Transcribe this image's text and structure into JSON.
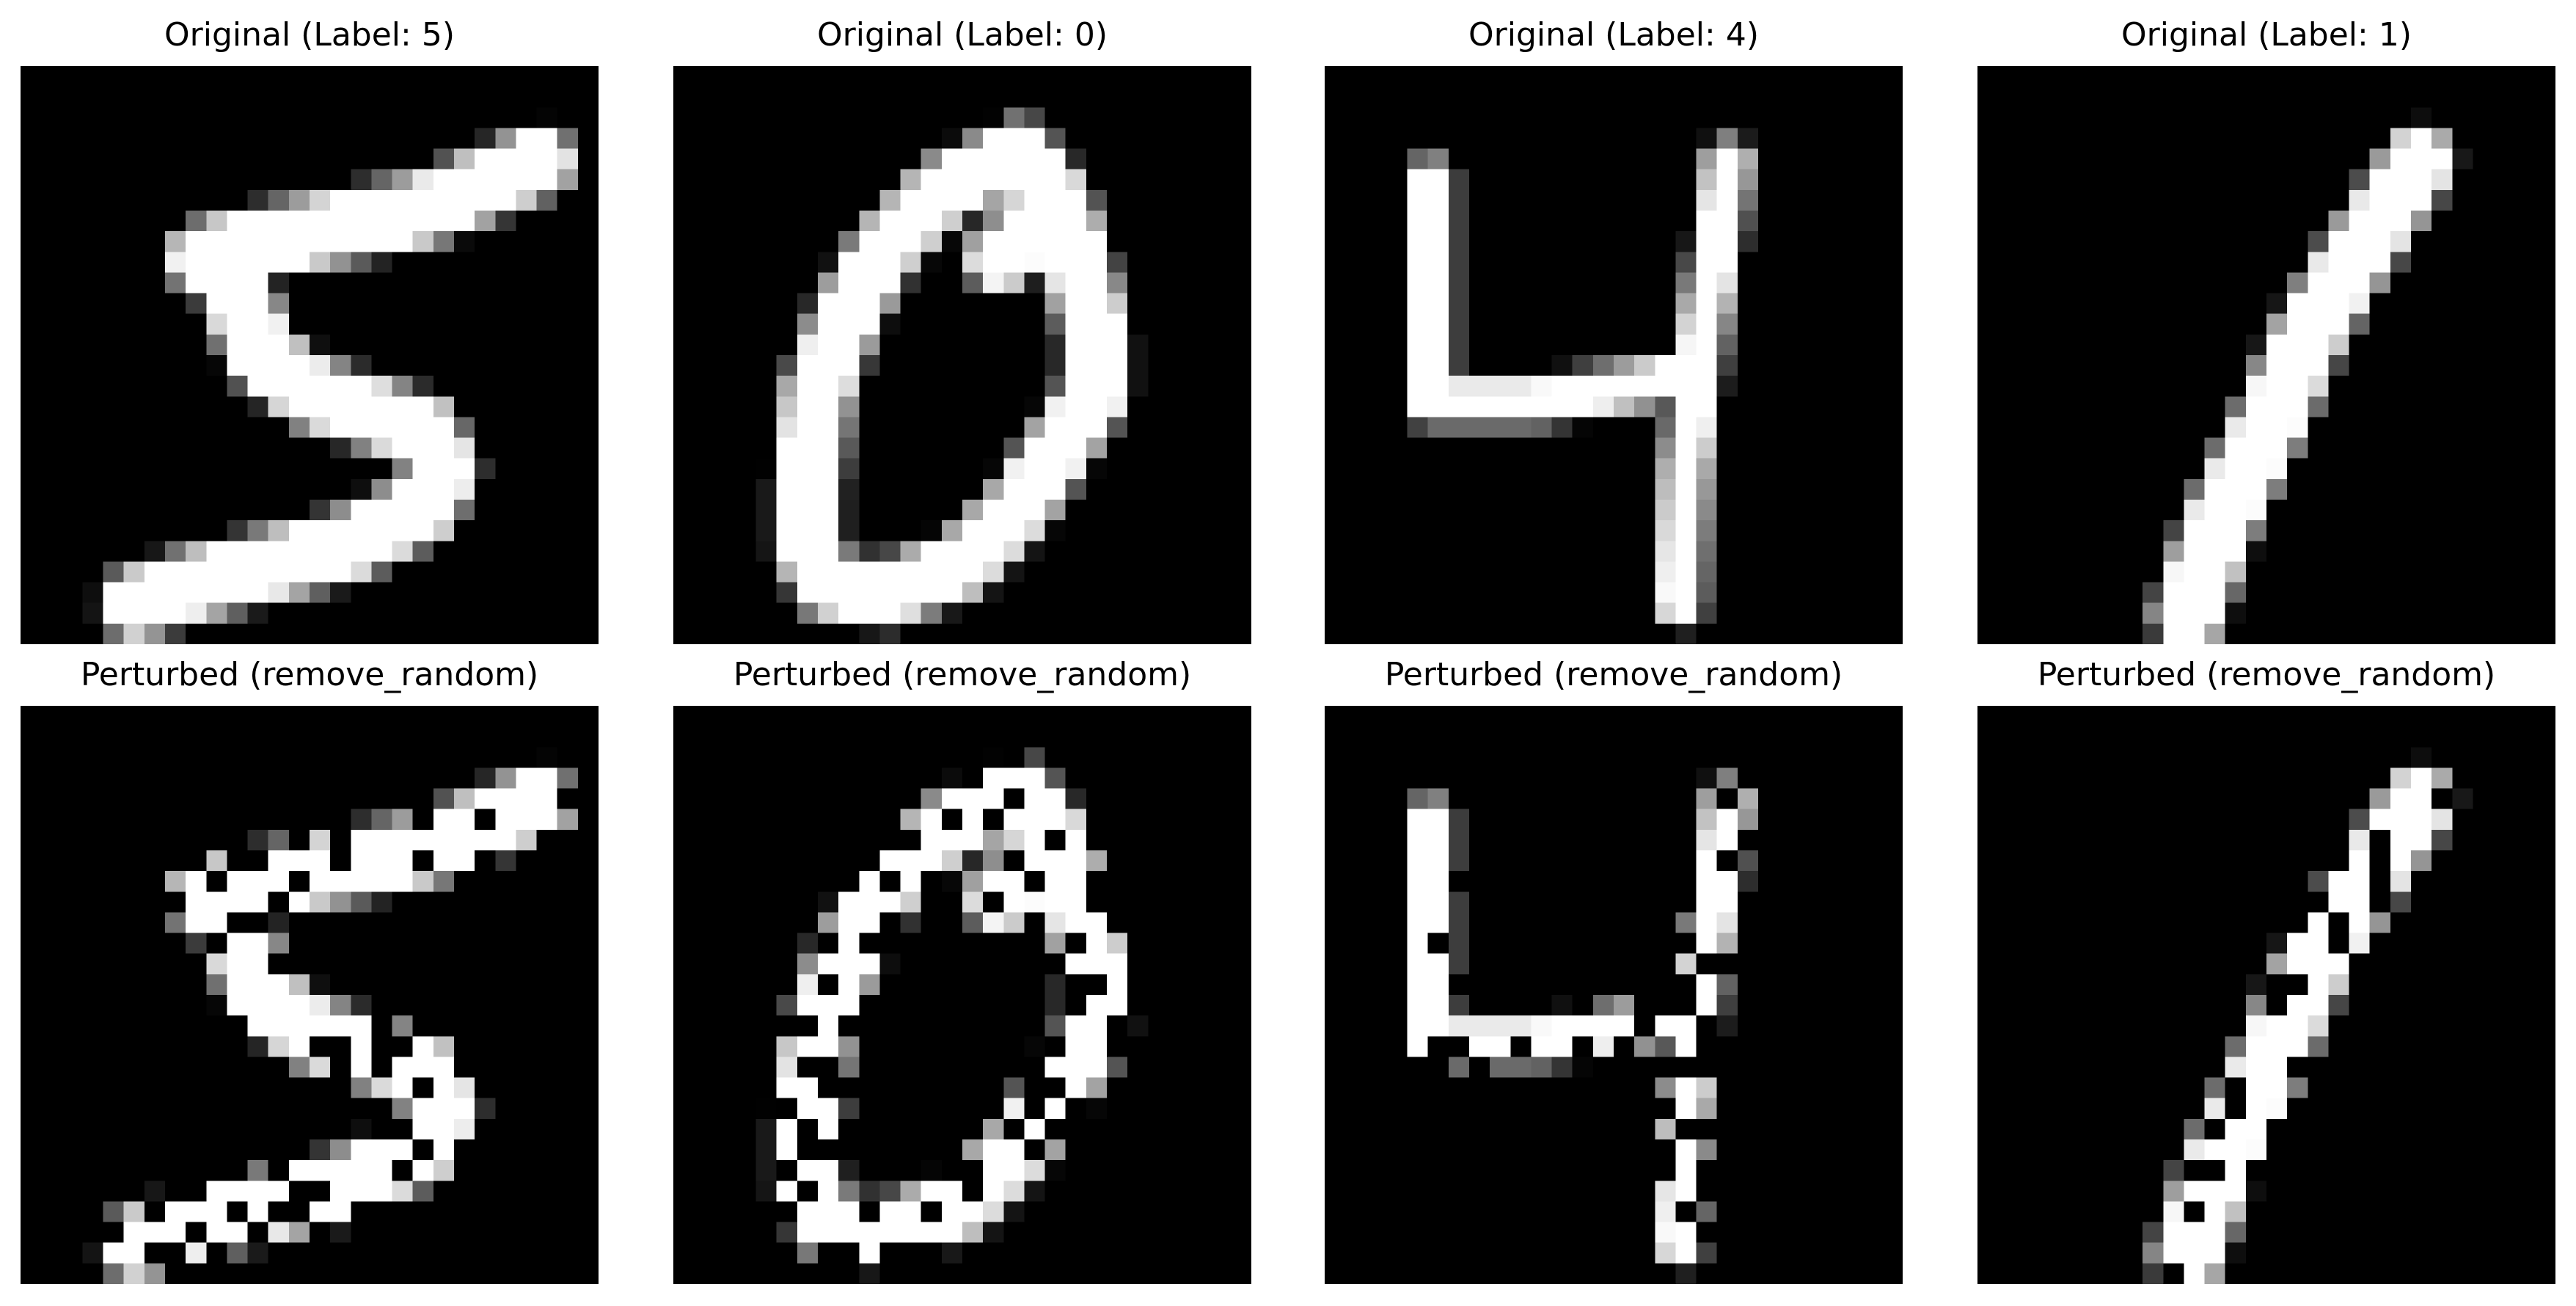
{
  "figure": {
    "background": "#ffffff",
    "colormap": "gray",
    "image_resolution": "28x28",
    "panels": [
      {
        "title": "Original (Label: 5)",
        "digit": 5,
        "variant": "original"
      },
      {
        "title": "Original (Label: 0)",
        "digit": 0,
        "variant": "original"
      },
      {
        "title": "Original (Label: 4)",
        "digit": 4,
        "variant": "original"
      },
      {
        "title": "Original (Label: 1)",
        "digit": 1,
        "variant": "original"
      },
      {
        "title": "Perturbed (remove_random)",
        "digit": 5,
        "variant": "perturbed"
      },
      {
        "title": "Perturbed (remove_random)",
        "digit": 0,
        "variant": "perturbed"
      },
      {
        "title": "Perturbed (remove_random)",
        "digit": 4,
        "variant": "perturbed"
      },
      {
        "title": "Perturbed (remove_random)",
        "digit": 1,
        "variant": "perturbed"
      }
    ]
  }
}
